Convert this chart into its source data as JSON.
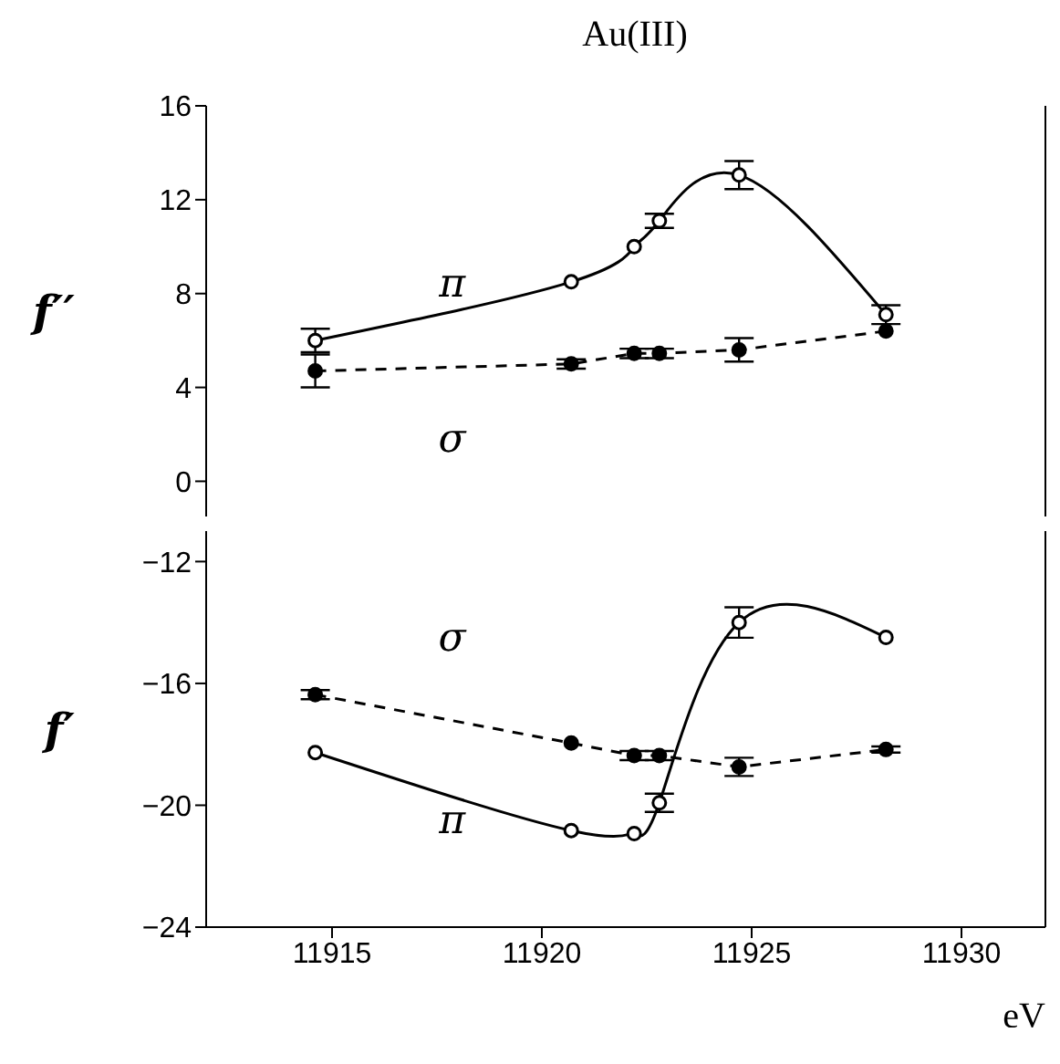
{
  "chart_data": [
    {
      "type": "line",
      "title": "Au(III)",
      "ylabel": "f′′",
      "x": [
        11914.6,
        11920.7,
        11922.2,
        11922.8,
        11924.7,
        11928.2
      ],
      "xlim": [
        11912,
        11932
      ],
      "xticks": [
        11915,
        11920,
        11925,
        11930
      ],
      "ylim": [
        -1.5,
        16
      ],
      "yticks": [
        0,
        4,
        8,
        12,
        16
      ],
      "tick_labels": "y",
      "marker": "circle",
      "series": [
        {
          "name": "π",
          "color": "#000000",
          "line_style": "solid",
          "values": [
            6.0,
            8.5,
            10.0,
            11.1,
            13.05,
            7.1
          ],
          "errors": [
            0.5,
            null,
            null,
            0.3,
            0.6,
            0.4
          ]
        },
        {
          "name": "σ",
          "color": "#000000",
          "line_style": "dashed",
          "values": [
            4.7,
            5.0,
            5.45,
            5.45,
            5.6,
            6.4
          ],
          "errors": [
            0.7,
            0.2,
            0.2,
            0.2,
            0.5,
            null
          ]
        }
      ]
    },
    {
      "type": "line",
      "ylabel": "f′",
      "xlabel": "eV",
      "x": [
        11914.6,
        11920.7,
        11922.2,
        11922.8,
        11924.7,
        11928.2
      ],
      "xlim": [
        11912,
        11932
      ],
      "xticks": [
        11915,
        11920,
        11925,
        11930
      ],
      "ylim": [
        -24,
        -11
      ],
      "yticks": [
        -24,
        -20,
        -16,
        -12
      ],
      "marker": "circle",
      "series": [
        {
          "name": "σ",
          "color": "#000000",
          "line_style": "dashed",
          "values": [
            -16.37,
            -17.96,
            -18.37,
            -18.37,
            -18.74,
            -18.17
          ],
          "errors": [
            0.15,
            null,
            0.15,
            0.15,
            0.3,
            0.1
          ]
        },
        {
          "name": "π",
          "color": "#000000",
          "line_style": "solid",
          "values": [
            -18.27,
            -20.83,
            -20.93,
            -19.92,
            -14.0,
            -14.49
          ],
          "errors": [
            null,
            null,
            null,
            0.3,
            0.5,
            null
          ]
        }
      ]
    }
  ]
}
